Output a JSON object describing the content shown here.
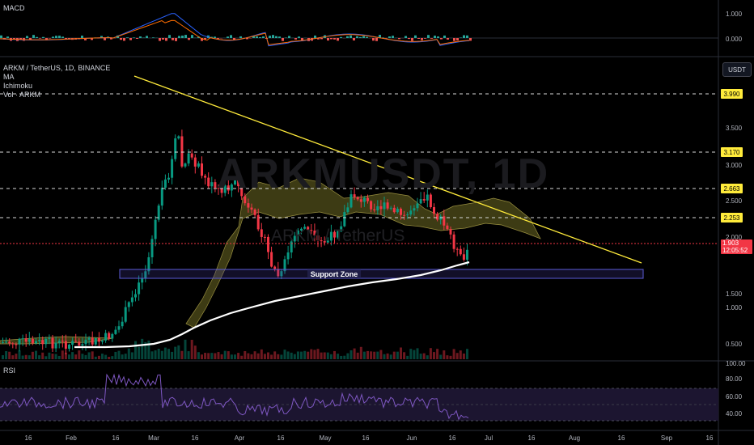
{
  "macd_pane": {
    "title": "MACD",
    "axis_labels": [
      "1.000",
      "0.000"
    ]
  },
  "main_pane": {
    "symbol_line": "ARKM / TetherUS, 1D, BINANCE",
    "indicators": [
      "MA",
      "Ichimoku",
      "Vol · ARKM"
    ],
    "watermark_symbol": "ARKMUSDT, 1D",
    "watermark_name": "ARKM / TetherUS",
    "currency_button": "USDT",
    "axis_labels": [
      "3.500",
      "3.000",
      "2.500",
      "2.000",
      "1.500",
      "1.000",
      "0.500"
    ],
    "level_tags": [
      "3.990",
      "3.170",
      "2.663",
      "2.253"
    ],
    "current_price": "1.903",
    "countdown": "12:05:52",
    "support_zone_label": "Support Zone",
    "colors": {
      "level_tag_bg": "#ffeb3b",
      "current_price_bg": "#f23645",
      "trendline": "#ffeb3b",
      "support_zone_border": "#5b5bd6",
      "ma_line": "#ffffff",
      "cloud_fill": "#5d5a1e",
      "bull_candle": "#089981",
      "bear_candle": "#f23645"
    }
  },
  "rsi_pane": {
    "title": "RSI",
    "axis_labels": [
      "100.00",
      "80.00",
      "60.00",
      "40.00"
    ]
  },
  "time_axis": {
    "labels": [
      "16",
      "Feb",
      "16",
      "Mar",
      "16",
      "Apr",
      "16",
      "May",
      "16",
      "Jun",
      "16",
      "Jul",
      "16",
      "Aug",
      "16",
      "Sep",
      "16"
    ]
  }
}
